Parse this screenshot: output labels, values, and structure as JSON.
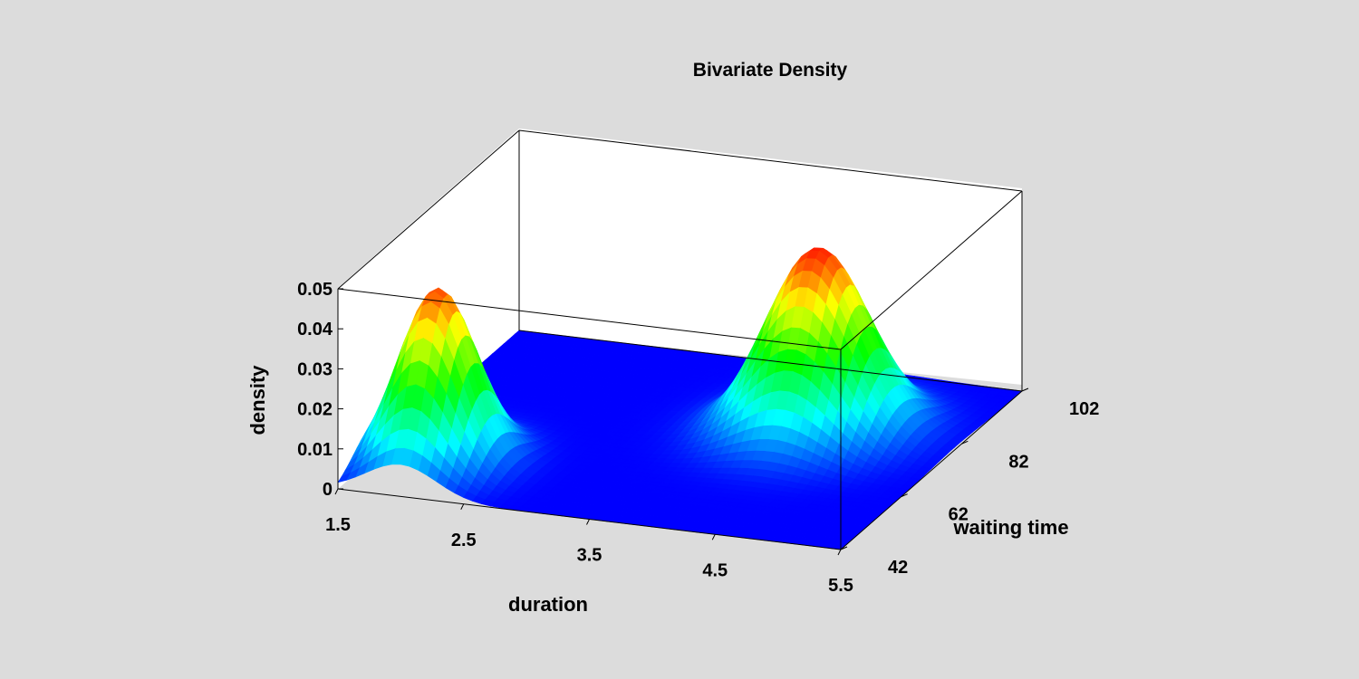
{
  "chart_data": {
    "type": "surface",
    "title": "Bivariate Density",
    "xlabel": "duration",
    "ylabel": "waiting time",
    "zlabel": "density",
    "x_ticks": [
      "1.5",
      "2.5",
      "3.5",
      "4.5",
      "5.5"
    ],
    "y_ticks": [
      "42",
      "62",
      "82",
      "102"
    ],
    "z_ticks": [
      "0",
      "0.01",
      "0.02",
      "0.03",
      "0.04",
      "0.05"
    ],
    "xlim": [
      1.5,
      5.5
    ],
    "ylim": [
      42,
      102
    ],
    "zlim": [
      0,
      0.05
    ],
    "peaks": [
      {
        "duration": 2.0,
        "waiting_time": 54,
        "density": 0.044
      },
      {
        "duration": 4.4,
        "waiting_time": 80,
        "density": 0.046
      }
    ],
    "colormap": [
      "#0000ff",
      "#00ffff",
      "#00ff00",
      "#ffff00",
      "#ff0000"
    ]
  }
}
